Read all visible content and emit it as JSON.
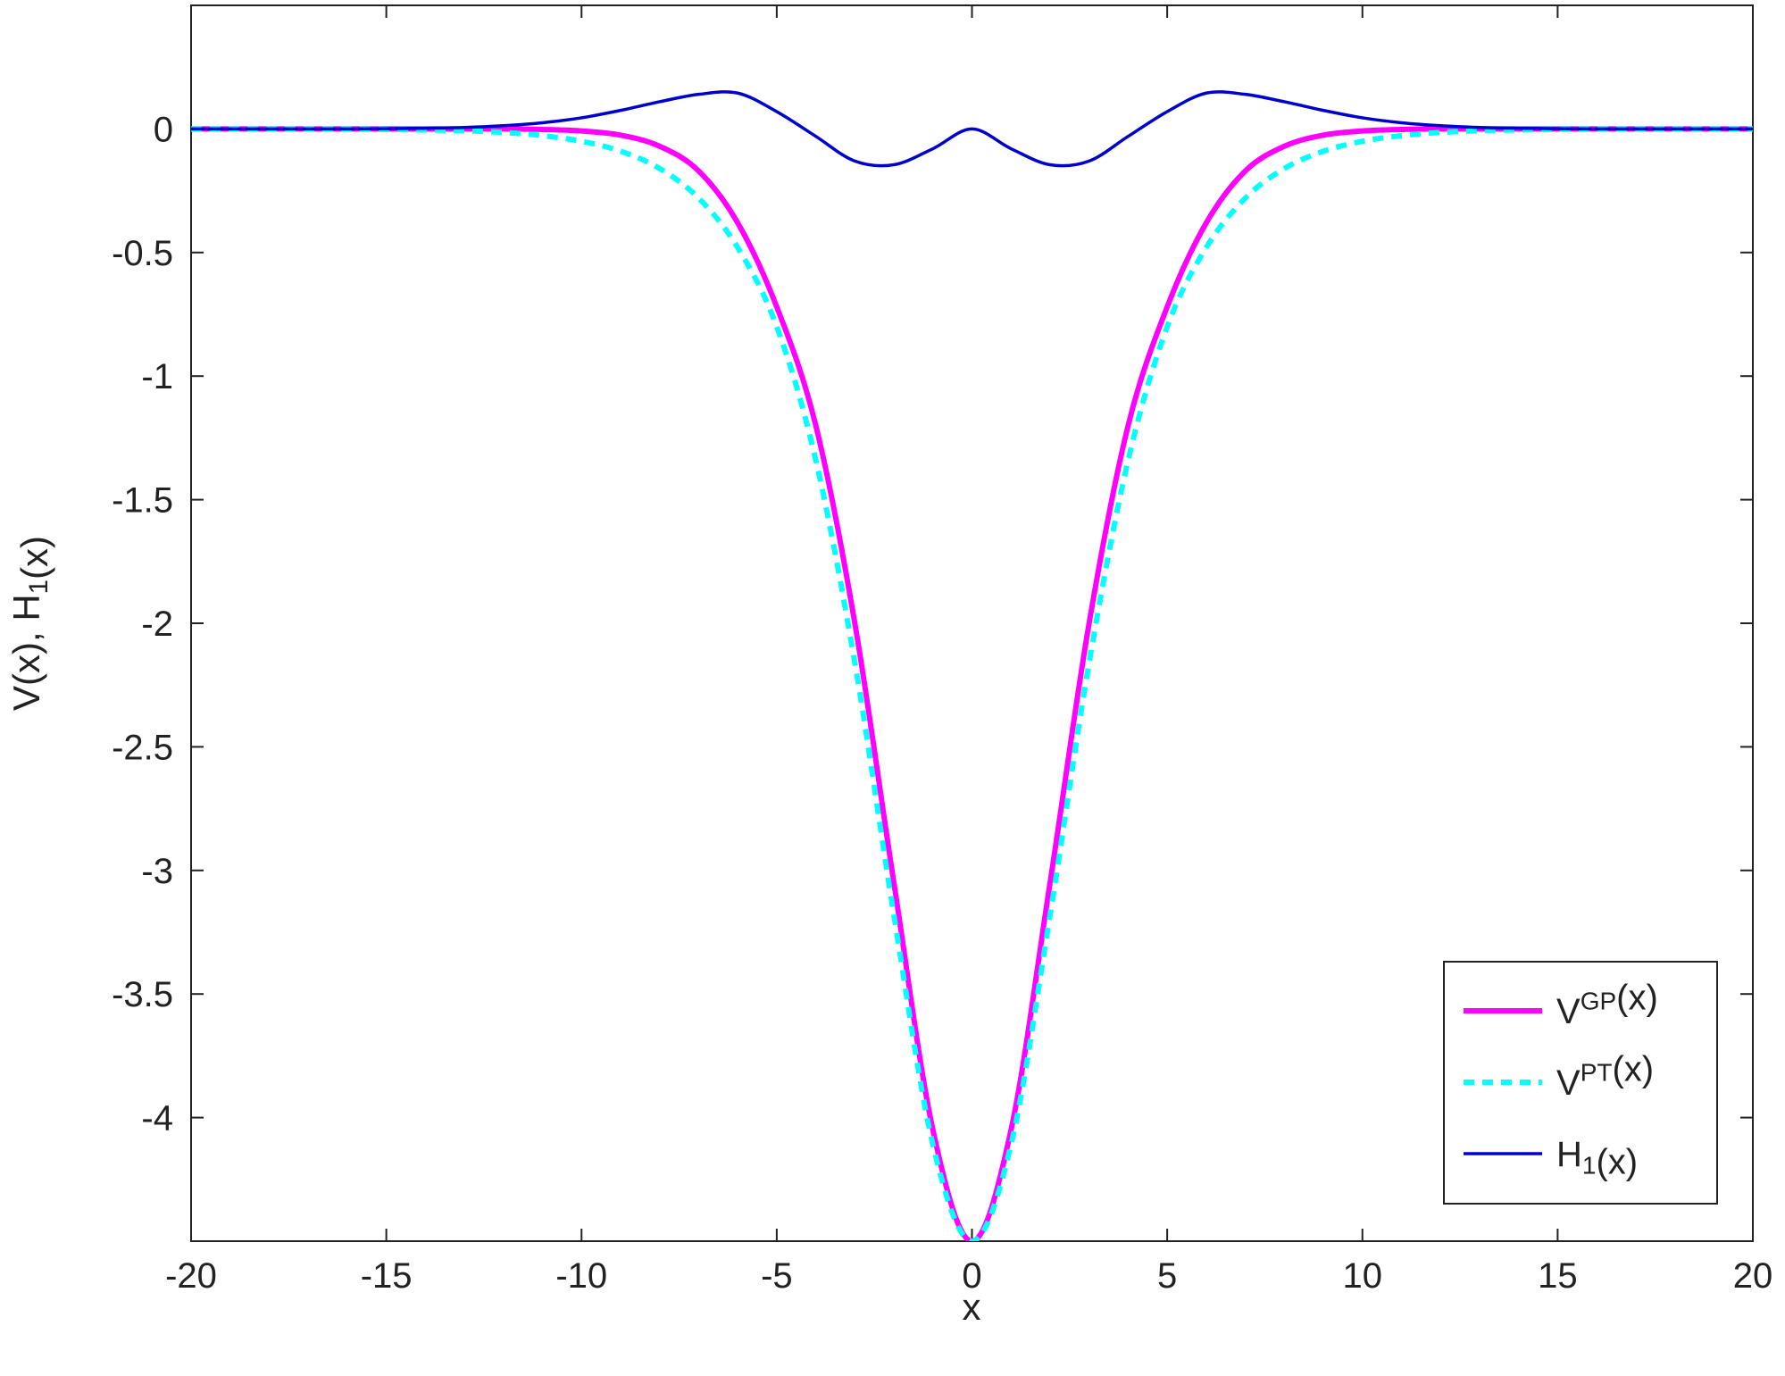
{
  "chart_data": {
    "type": "line",
    "xlabel": "x",
    "ylabel": "V(x), H1(x)",
    "x": [
      -20,
      -19,
      -18,
      -17,
      -16,
      -15,
      -14,
      -13,
      -12,
      -11,
      -10,
      -9,
      -8,
      -7,
      -6,
      -5,
      -4,
      -3,
      -2,
      -1,
      0,
      1,
      2,
      3,
      4,
      5,
      6,
      7,
      8,
      9,
      10,
      11,
      12,
      13,
      14,
      15,
      16,
      17,
      18,
      19,
      20
    ],
    "series": [
      {
        "name": "VGP(x)",
        "color": "#ff00ff",
        "style": "solid",
        "values": [
          0,
          0,
          0,
          0,
          0,
          0,
          0,
          0,
          0,
          -0.002,
          -0.008,
          -0.025,
          -0.07,
          -0.17,
          -0.38,
          -0.72,
          -1.2,
          -2.0,
          -3.05,
          -4.05,
          -4.5,
          -4.05,
          -3.05,
          -2.0,
          -1.2,
          -0.72,
          -0.38,
          -0.17,
          -0.07,
          -0.025,
          -0.008,
          -0.002,
          0,
          0,
          0,
          0,
          0,
          0,
          0,
          0,
          0
        ]
      },
      {
        "name": "VPT(x)",
        "color": "#00ffff",
        "style": "dashed",
        "values": [
          0,
          0,
          0,
          0,
          -0.001,
          -0.002,
          -0.004,
          -0.007,
          -0.014,
          -0.027,
          -0.05,
          -0.09,
          -0.16,
          -0.28,
          -0.48,
          -0.8,
          -1.34,
          -2.16,
          -3.18,
          -4.11,
          -4.5,
          -4.11,
          -3.18,
          -2.16,
          -1.34,
          -0.8,
          -0.48,
          -0.28,
          -0.16,
          -0.09,
          -0.05,
          -0.027,
          -0.014,
          -0.007,
          -0.004,
          -0.002,
          -0.001,
          0,
          0,
          0,
          0
        ]
      },
      {
        "name": "H1(x)",
        "color": "#0000cc",
        "style": "thin",
        "values": [
          0,
          0,
          0,
          0,
          0,
          0.001,
          0.003,
          0.006,
          0.013,
          0.025,
          0.045,
          0.075,
          0.11,
          0.14,
          0.145,
          0.07,
          -0.03,
          -0.13,
          -0.145,
          -0.08,
          0,
          -0.08,
          -0.145,
          -0.13,
          -0.03,
          0.07,
          0.145,
          0.14,
          0.11,
          0.075,
          0.045,
          0.025,
          0.013,
          0.006,
          0.003,
          0.001,
          0,
          0,
          0,
          0,
          0
        ]
      }
    ],
    "xlim": [
      -20,
      20
    ],
    "ylim": [
      -4.5,
      0.5
    ],
    "xticks": [
      -20,
      -15,
      -10,
      -5,
      0,
      5,
      10,
      15,
      20
    ],
    "yticks": [
      0,
      -0.5,
      -1,
      -1.5,
      -2,
      -2.5,
      -3,
      -3.5,
      -4
    ],
    "grid": false,
    "legend": "lower right"
  }
}
